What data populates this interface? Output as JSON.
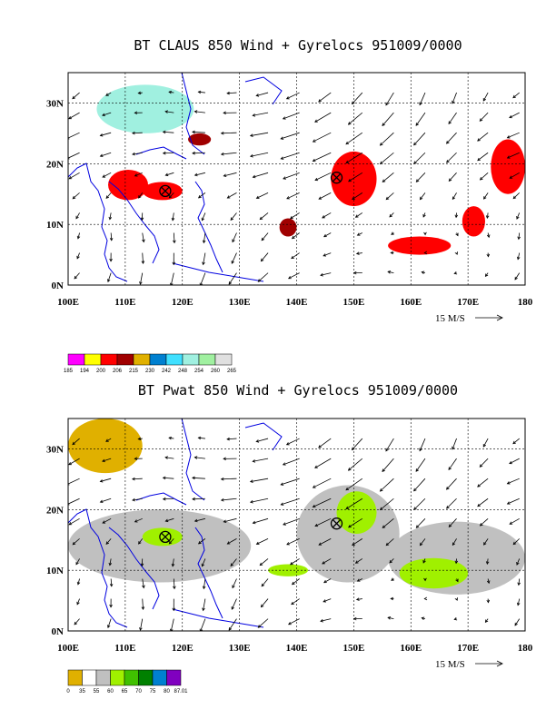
{
  "chart_data": [
    {
      "type": "heatmap",
      "title": "BT CLAUS 850 Wind + Gyrelocs 951009/0000",
      "xlim": [
        100,
        180
      ],
      "ylim": [
        0,
        35
      ],
      "x_ticks": [
        "100E",
        "110E",
        "120E",
        "130E",
        "140E",
        "150E",
        "160E",
        "170E",
        "180"
      ],
      "y_ticks": [
        "0N",
        "10N",
        "20N",
        "30N"
      ],
      "grid": true,
      "reference_vector": "15 M/S",
      "colorbar": {
        "levels": [
          "185",
          "194",
          "200",
          "206",
          "215",
          "230",
          "242",
          "248",
          "254",
          "260",
          "265"
        ],
        "colors": [
          "#ff00ff",
          "#ffff00",
          "#ff0000",
          "#a00000",
          "#e0b000",
          "#0080d0",
          "#40e0ff",
          "#a0f0e0",
          "#a0f0a0",
          "#e0e0e0"
        ]
      },
      "gyre_locations": [
        {
          "lon": 117,
          "lat": 15.5
        },
        {
          "lon": 147,
          "lat": 17.7
        }
      ],
      "regions": [
        {
          "lon": [
            107,
            114
          ],
          "lat": [
            14,
            19
          ],
          "level": "200"
        },
        {
          "lon": [
            113,
            120
          ],
          "lat": [
            14,
            17
          ],
          "level": "200"
        },
        {
          "lon": [
            146,
            154
          ],
          "lat": [
            13,
            22
          ],
          "level": "200"
        },
        {
          "lon": [
            156,
            167
          ],
          "lat": [
            5,
            8
          ],
          "level": "200"
        },
        {
          "lon": [
            169,
            173
          ],
          "lat": [
            8,
            13
          ],
          "level": "200"
        },
        {
          "lon": [
            174,
            180
          ],
          "lat": [
            15,
            24
          ],
          "level": "200"
        },
        {
          "lon": [
            137,
            140
          ],
          "lat": [
            8,
            11
          ],
          "level": "206"
        },
        {
          "lon": [
            121,
            125
          ],
          "lat": [
            23,
            25
          ],
          "level": "206"
        },
        {
          "lon": [
            105,
            122
          ],
          "lat": [
            25,
            33
          ],
          "level": "248"
        }
      ]
    },
    {
      "type": "heatmap",
      "title": "BT Pwat 850 Wind + Gyrelocs 951009/0000",
      "xlim": [
        100,
        180
      ],
      "ylim": [
        0,
        35
      ],
      "x_ticks": [
        "100E",
        "110E",
        "120E",
        "130E",
        "140E",
        "150E",
        "160E",
        "170E",
        "180"
      ],
      "y_ticks": [
        "0N",
        "10N",
        "20N",
        "30N"
      ],
      "grid": true,
      "reference_vector": "15 M/S",
      "colorbar": {
        "levels": [
          "0",
          "35",
          "55",
          "60",
          "65",
          "70",
          "75",
          "80",
          "87.01"
        ],
        "colors": [
          "#e0b000",
          "#ffffff",
          "#c0c0c0",
          "#a0f000",
          "#40c000",
          "#008000",
          "#0080d0",
          "#8000c0"
        ]
      },
      "gyre_locations": [
        {
          "lon": 117,
          "lat": 15.5
        },
        {
          "lon": 147,
          "lat": 17.7
        }
      ],
      "regions": [
        {
          "lon": [
            100,
            113
          ],
          "lat": [
            26,
            35
          ],
          "level": "0"
        },
        {
          "lon": [
            100,
            132
          ],
          "lat": [
            8,
            20
          ],
          "level": "55"
        },
        {
          "lon": [
            140,
            158
          ],
          "lat": [
            8,
            24
          ],
          "level": "55"
        },
        {
          "lon": [
            156,
            180
          ],
          "lat": [
            6,
            18
          ],
          "level": "55"
        },
        {
          "lon": [
            147,
            154
          ],
          "lat": [
            16,
            23
          ],
          "level": "60"
        },
        {
          "lon": [
            158,
            170
          ],
          "lat": [
            7,
            12
          ],
          "level": "60"
        },
        {
          "lon": [
            113,
            120
          ],
          "lat": [
            14,
            17
          ],
          "level": "60"
        },
        {
          "lon": [
            135,
            142
          ],
          "lat": [
            9,
            11
          ],
          "level": "60"
        }
      ]
    }
  ]
}
